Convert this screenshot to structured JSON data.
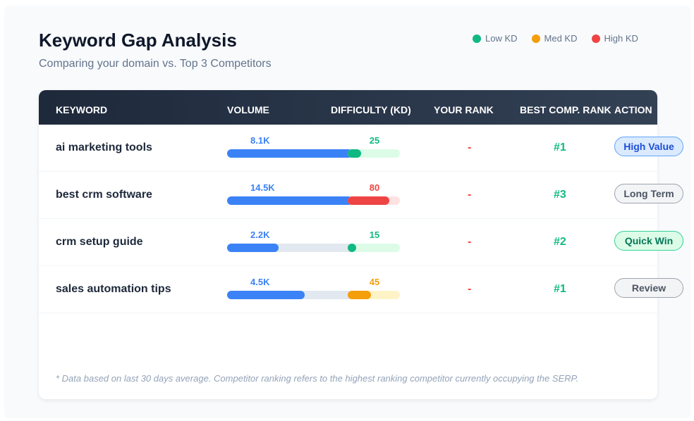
{
  "header": {
    "title": "Keyword Gap Analysis",
    "subtitle": "Comparing your domain vs. Top 3 Competitors"
  },
  "legend": [
    {
      "label": "Low KD",
      "color": "#10b981"
    },
    {
      "label": "Med KD",
      "color": "#f59e0b"
    },
    {
      "label": "High KD",
      "color": "#ef4444"
    }
  ],
  "table": {
    "columns": [
      "KEYWORD",
      "VOLUME",
      "DIFFICULTY (KD)",
      "YOUR RANK",
      "BEST COMP. RANK",
      "ACTION"
    ],
    "rows": [
      {
        "keyword": "ai marketing tools",
        "volume": "8.1K",
        "volume_pct": 100,
        "kd": "25",
        "kd_pct": 25,
        "kd_color": "#10b981",
        "kd_bg": "#dcfce7",
        "your_rank": "-",
        "best_comp": "#1",
        "action": "High Value",
        "action_style": "blue"
      },
      {
        "keyword": "best crm software",
        "volume": "14.5K",
        "volume_pct": 100,
        "kd": "80",
        "kd_pct": 80,
        "kd_color": "#ef4444",
        "kd_bg": "#fee2e2",
        "your_rank": "-",
        "best_comp": "#3",
        "action": "Long Term",
        "action_style": "gray"
      },
      {
        "keyword": "crm setup guide",
        "volume": "2.2K",
        "volume_pct": 41,
        "kd": "15",
        "kd_pct": 15,
        "kd_color": "#10b981",
        "kd_bg": "#dcfce7",
        "your_rank": "-",
        "best_comp": "#2",
        "action": "Quick Win",
        "action_style": "green"
      },
      {
        "keyword": "sales automation tips",
        "volume": "4.5K",
        "volume_pct": 62,
        "kd": "45",
        "kd_pct": 45,
        "kd_color": "#f59e0b",
        "kd_bg": "#fef3c7",
        "your_rank": "-",
        "best_comp": "#1",
        "action": "Review",
        "action_style": "gray"
      }
    ]
  },
  "footnote": "* Data based on last 30 days average. Competitor ranking refers to the highest ranking competitor currently occupying the SERP."
}
